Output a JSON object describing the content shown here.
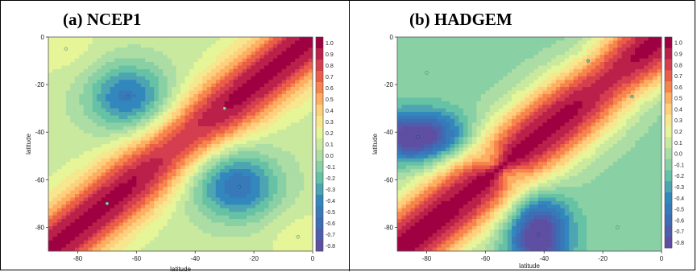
{
  "figure": {
    "panels": [
      {
        "label": "(a)  NCEP1",
        "xlabel": "latitude",
        "ylabel": "latitude"
      },
      {
        "label": "(b)  HADGEM",
        "xlabel": "latitude",
        "ylabel": "latitude"
      }
    ]
  },
  "chart_data": [
    {
      "type": "heatmap",
      "title": "(a)  NCEP1",
      "xlabel": "latitude",
      "ylabel": "latitude",
      "x_ticks": [
        "-80",
        "-60",
        "-40",
        "-20",
        "0"
      ],
      "y_ticks": [
        "0",
        "-20",
        "-40",
        "-60",
        "-80"
      ],
      "xlim": [
        -90,
        0
      ],
      "ylim": [
        -90,
        0
      ],
      "colorbar_ticks": [
        "1.0",
        "0.9",
        "0.8",
        "0.7",
        "0.6",
        "0.5",
        "0.4",
        "0.3",
        "0.2",
        "0.1",
        "0.0",
        "-0.1",
        "-0.2",
        "-0.3",
        "-0.4",
        "-0.5",
        "-0.6",
        "-0.7",
        "-0.8"
      ],
      "zlim": [
        -0.8,
        1.0
      ],
      "features": [
        {
          "x": -63,
          "y": -25,
          "value": -0.45
        },
        {
          "x": -25,
          "y": -63,
          "value": -0.45
        },
        {
          "x": -84,
          "y": -5,
          "value": 0.1
        },
        {
          "x": -5,
          "y": -84,
          "value": 0.1
        },
        {
          "x": -30,
          "y": -30,
          "value": -0.15
        },
        {
          "x": -70,
          "y": -70,
          "value": -0.15
        }
      ]
    },
    {
      "type": "heatmap",
      "title": "(b)  HADGEM",
      "xlabel": "latitude",
      "ylabel": "latitude",
      "x_ticks": [
        "-80",
        "-60",
        "-40",
        "-20",
        "0"
      ],
      "y_ticks": [
        "0",
        "-20",
        "-40",
        "-60",
        "-80"
      ],
      "xlim": [
        -90,
        0
      ],
      "ylim": [
        -90,
        0
      ],
      "colorbar_ticks": [
        "1.0",
        "0.9",
        "0.8",
        "0.7",
        "0.6",
        "0.5",
        "0.4",
        "0.3",
        "0.2",
        "0.1",
        "0.0",
        "-0.1",
        "-0.2",
        "-0.3",
        "-0.4",
        "-0.5",
        "-0.6",
        "-0.7",
        "-0.8"
      ],
      "zlim": [
        -0.8,
        1.0
      ],
      "features": [
        {
          "x": -83,
          "y": -42,
          "value": -0.75
        },
        {
          "x": -42,
          "y": -83,
          "value": -0.75
        },
        {
          "x": -25,
          "y": -10,
          "value": -0.2
        },
        {
          "x": -10,
          "y": -25,
          "value": -0.2
        },
        {
          "x": -80,
          "y": -15,
          "value": -0.1
        },
        {
          "x": -15,
          "y": -80,
          "value": -0.1
        }
      ]
    }
  ]
}
